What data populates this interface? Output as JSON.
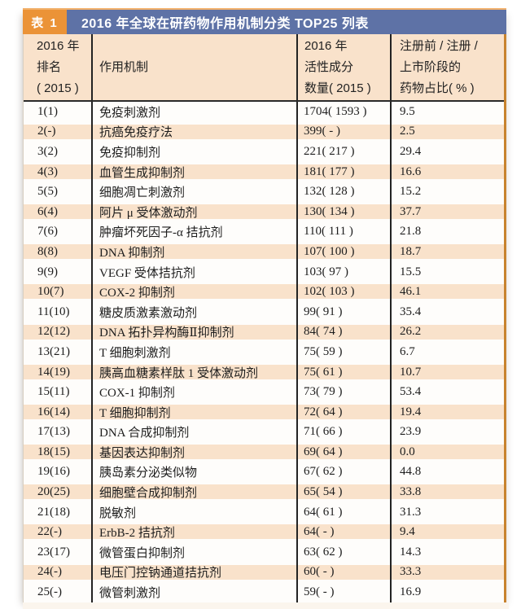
{
  "table_label": "表 1",
  "title": "2016 年全球在研药物作用机制分类 TOP25 列表",
  "columns": [
    {
      "lines": [
        "2016 年",
        "排名",
        "( 2015 )"
      ]
    },
    {
      "lines": [
        "作用机制"
      ]
    },
    {
      "lines": [
        "2016 年",
        "活性成分",
        "数量( 2015 )"
      ]
    },
    {
      "lines": [
        "注册前 / 注册 /",
        "上市阶段的",
        "药物占比( % )"
      ]
    }
  ],
  "rows": [
    {
      "rank": "1(1)",
      "mechanism": "免疫刺激剂",
      "count": "1704( 1593 )",
      "percent": "9.5"
    },
    {
      "rank": "2(-)",
      "mechanism": "抗癌免疫疗法",
      "count": "399( - )",
      "percent": "2.5"
    },
    {
      "rank": "3(2)",
      "mechanism": "免疫抑制剂",
      "count": "221( 217 )",
      "percent": "29.4"
    },
    {
      "rank": "4(3)",
      "mechanism": "血管生成抑制剂",
      "count": "181( 177 )",
      "percent": "16.6"
    },
    {
      "rank": "5(5)",
      "mechanism": "细胞凋亡刺激剂",
      "count": "132( 128 )",
      "percent": "15.2"
    },
    {
      "rank": "6(4)",
      "mechanism": "阿片 μ 受体激动剂",
      "count": "130( 134 )",
      "percent": "37.7"
    },
    {
      "rank": "7(6)",
      "mechanism": "肿瘤坏死因子-α 拮抗剂",
      "count": "110( 111 )",
      "percent": "21.8"
    },
    {
      "rank": "8(8)",
      "mechanism": "DNA 抑制剂",
      "count": "107( 100 )",
      "percent": "18.7"
    },
    {
      "rank": "9(9)",
      "mechanism": "VEGF 受体拮抗剂",
      "count": "103( 97 )",
      "percent": "15.5"
    },
    {
      "rank": "10(7)",
      "mechanism": "COX-2 抑制剂",
      "count": "102( 103 )",
      "percent": "46.1"
    },
    {
      "rank": "11(10)",
      "mechanism": "糖皮质激素激动剂",
      "count": "99( 91 )",
      "percent": "35.4"
    },
    {
      "rank": "12(12)",
      "mechanism": "DNA 拓扑异构酶Ⅱ抑制剂",
      "count": "84( 74 )",
      "percent": "26.2"
    },
    {
      "rank": "13(21)",
      "mechanism": "T 细胞刺激剂",
      "count": "75( 59 )",
      "percent": "6.7"
    },
    {
      "rank": "14(19)",
      "mechanism": "胰高血糖素样肽 1 受体激动剂",
      "count": "75( 61 )",
      "percent": "10.7"
    },
    {
      "rank": "15(11)",
      "mechanism": "COX-1 抑制剂",
      "count": "73( 79 )",
      "percent": "53.4"
    },
    {
      "rank": "16(14)",
      "mechanism": "T 细胞抑制剂",
      "count": "72( 64 )",
      "percent": "19.4"
    },
    {
      "rank": "17(13)",
      "mechanism": "DNA 合成抑制剂",
      "count": "71( 66 )",
      "percent": "23.9"
    },
    {
      "rank": "18(15)",
      "mechanism": "基因表达抑制剂",
      "count": "69( 64 )",
      "percent": "0.0"
    },
    {
      "rank": "19(16)",
      "mechanism": "胰岛素分泌类似物",
      "count": "67( 62 )",
      "percent": "44.8"
    },
    {
      "rank": "20(25)",
      "mechanism": "细胞壁合成抑制剂",
      "count": "65( 54 )",
      "percent": "33.8"
    },
    {
      "rank": "21(18)",
      "mechanism": "脱敏剂",
      "count": "64( 61 )",
      "percent": "31.3"
    },
    {
      "rank": "22(-)",
      "mechanism": "ErbB-2 拮抗剂",
      "count": "64( - )",
      "percent": "9.4"
    },
    {
      "rank": "23(17)",
      "mechanism": "微管蛋白抑制剂",
      "count": "63( 62 )",
      "percent": "14.3"
    },
    {
      "rank": "24(-)",
      "mechanism": "电压门控钠通道拮抗剂",
      "count": "60( - )",
      "percent": "33.3"
    },
    {
      "rank": "25(-)",
      "mechanism": "微管刺激剂",
      "count": "59( - )",
      "percent": "16.9"
    }
  ],
  "colors": {
    "label_orange": "#EB9337",
    "titlebar_blue": "#5E72A6",
    "stripe_peach": "#F9E2CB",
    "outer_border_orange": "#C8832F",
    "rule_black": "#232323"
  }
}
